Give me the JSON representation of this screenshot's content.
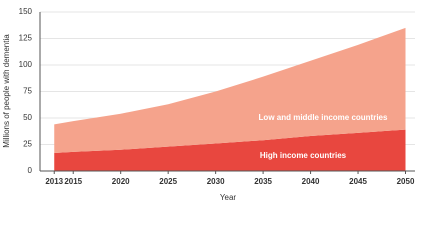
{
  "chart_data": {
    "type": "stacked-area",
    "xlabel": "Year",
    "ylabel": "Millions of people with dementia",
    "x": [
      2013,
      2015,
      2020,
      2025,
      2030,
      2035,
      2040,
      2045,
      2050
    ],
    "series": [
      {
        "name": "High income countries",
        "color": "#e8473f",
        "values": [
          17,
          18,
          20,
          23,
          26,
          29,
          33,
          36,
          39
        ]
      },
      {
        "name": "Low and middle income countries",
        "color": "#f5a38c",
        "values": [
          27,
          29,
          34,
          40,
          49,
          60,
          71,
          83,
          96
        ]
      }
    ],
    "xlim": [
      2011.5,
      2051
    ],
    "xticks": [
      2013,
      2015,
      2020,
      2025,
      2030,
      2035,
      2040,
      2045,
      2050
    ],
    "ylim": [
      0,
      150
    ],
    "yticks": [
      0,
      25,
      50,
      75,
      100,
      125,
      150
    ],
    "grid": true
  }
}
